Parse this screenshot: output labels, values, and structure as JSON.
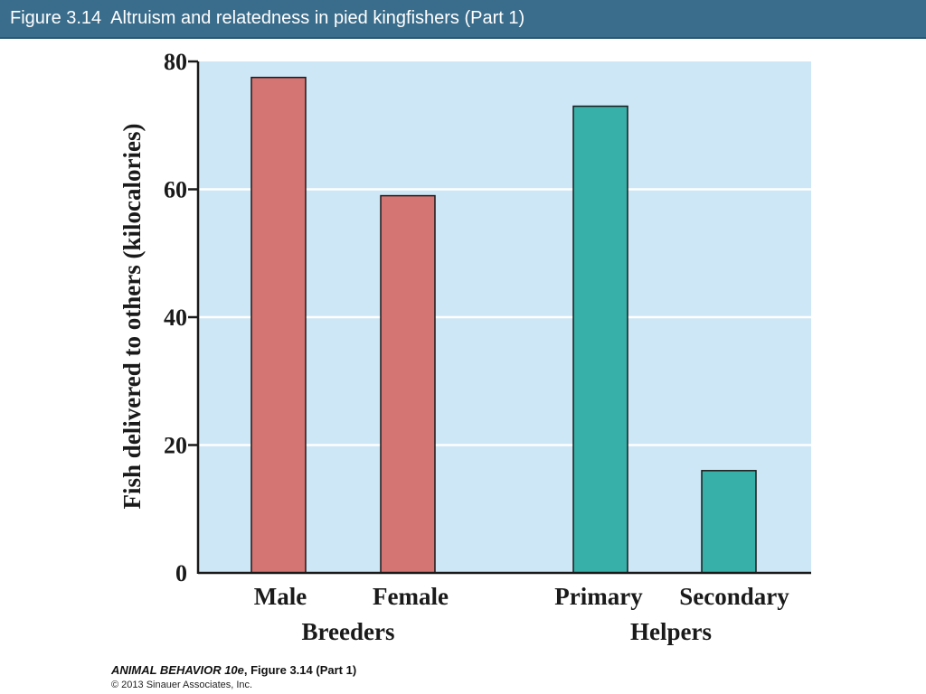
{
  "header": {
    "title": "Figure 3.14  Altruism and relatedness in pied kingfishers (Part 1)"
  },
  "chart_data": {
    "type": "bar",
    "categories": [
      "Male",
      "Female",
      "Primary",
      "Secondary"
    ],
    "groups": [
      {
        "label": "Breeders",
        "categories": [
          "Male",
          "Female"
        ]
      },
      {
        "label": "Helpers",
        "categories": [
          "Primary",
          "Secondary"
        ]
      }
    ],
    "values": [
      77.5,
      59,
      73,
      16
    ],
    "bar_colors": [
      "#d47573",
      "#d47573",
      "#38b0aa",
      "#38b0aa"
    ],
    "ylabel": "Fish delivered to others (kilocalories)",
    "xlabel": "",
    "ylim": [
      0,
      80
    ],
    "yticks": [
      0,
      20,
      40,
      60,
      80
    ],
    "grid": true,
    "background_color": "#cde7f6"
  },
  "footer": {
    "book_title": "ANIMAL BEHAVIOR 10e",
    "figure_ref": ", Figure 3.14 (Part 1)",
    "copyright": "© 2013 Sinauer Associates, Inc."
  }
}
